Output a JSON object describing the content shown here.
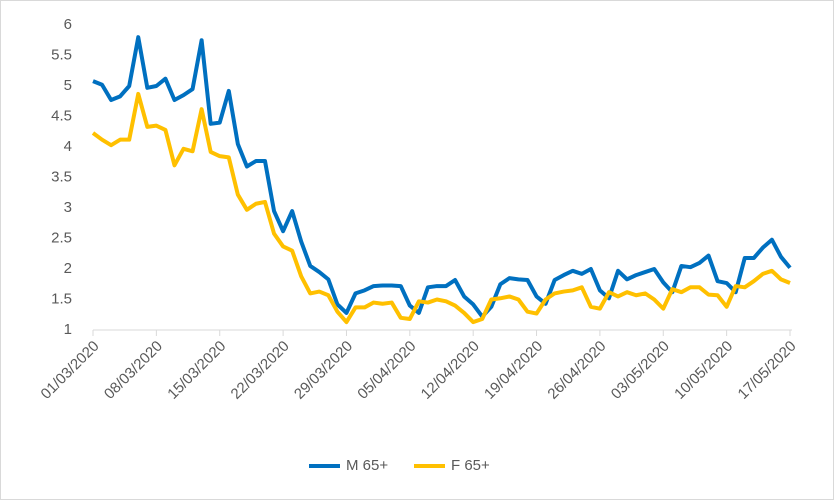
{
  "chart_data": {
    "type": "line",
    "categories": [
      "01/03/2020",
      null,
      null,
      null,
      null,
      null,
      null,
      "08/03/2020",
      null,
      null,
      null,
      null,
      null,
      null,
      "15/03/2020",
      null,
      null,
      null,
      null,
      null,
      null,
      "22/03/2020",
      null,
      null,
      null,
      null,
      null,
      null,
      "29/03/2020",
      null,
      null,
      null,
      null,
      null,
      null,
      "05/04/2020",
      null,
      null,
      null,
      null,
      null,
      null,
      "12/04/2020",
      null,
      null,
      null,
      null,
      null,
      null,
      "19/04/2020",
      null,
      null,
      null,
      null,
      null,
      null,
      "26/04/2020",
      null,
      null,
      null,
      null,
      null,
      null,
      "03/05/2020",
      null,
      null,
      null,
      null,
      null,
      null,
      "10/05/2020",
      null,
      null,
      null,
      null,
      null,
      null,
      "17/05/2020"
    ],
    "series": [
      {
        "name": "M 65+",
        "color": "#0070c0",
        "values": [
          5.08,
          5.02,
          4.77,
          4.83,
          5.0,
          5.8,
          4.97,
          5.0,
          5.12,
          4.77,
          4.85,
          4.95,
          5.75,
          4.38,
          4.4,
          4.92,
          4.05,
          3.68,
          3.77,
          3.77,
          2.95,
          2.62,
          2.95,
          2.45,
          2.05,
          1.95,
          1.83,
          1.42,
          1.28,
          1.6,
          1.65,
          1.72,
          1.73,
          1.73,
          1.72,
          1.4,
          1.28,
          1.7,
          1.72,
          1.72,
          1.82,
          1.55,
          1.42,
          1.22,
          1.38,
          1.75,
          1.85,
          1.83,
          1.82,
          1.55,
          1.43,
          1.82,
          1.9,
          1.97,
          1.92,
          2.0,
          1.65,
          1.52,
          1.97,
          1.83,
          1.9,
          1.95,
          2.0,
          1.78,
          1.62,
          2.05,
          2.03,
          2.1,
          2.22,
          1.8,
          1.77,
          1.62,
          2.18,
          2.18,
          2.35,
          2.48,
          2.2,
          2.02
        ]
      },
      {
        "name": "F 65+",
        "color": "#ffc000",
        "values": [
          4.23,
          4.12,
          4.03,
          4.12,
          4.12,
          4.87,
          4.33,
          4.35,
          4.28,
          3.7,
          3.97,
          3.93,
          4.62,
          3.92,
          3.85,
          3.83,
          3.22,
          2.97,
          3.07,
          3.1,
          2.58,
          2.37,
          2.3,
          1.88,
          1.6,
          1.63,
          1.57,
          1.3,
          1.13,
          1.37,
          1.37,
          1.45,
          1.43,
          1.45,
          1.2,
          1.18,
          1.47,
          1.45,
          1.5,
          1.47,
          1.4,
          1.28,
          1.13,
          1.18,
          1.5,
          1.52,
          1.55,
          1.5,
          1.3,
          1.27,
          1.5,
          1.6,
          1.63,
          1.65,
          1.7,
          1.38,
          1.35,
          1.62,
          1.55,
          1.62,
          1.57,
          1.6,
          1.5,
          1.35,
          1.67,
          1.62,
          1.7,
          1.7,
          1.58,
          1.57,
          1.38,
          1.72,
          1.7,
          1.8,
          1.92,
          1.97,
          1.83,
          1.77
        ]
      }
    ],
    "ylim": [
      1,
      6
    ],
    "yticks": [
      1,
      1.5,
      2,
      2.5,
      3,
      3.5,
      4,
      4.5,
      5,
      5.5,
      6
    ],
    "grid": false,
    "legend": "bottom"
  }
}
